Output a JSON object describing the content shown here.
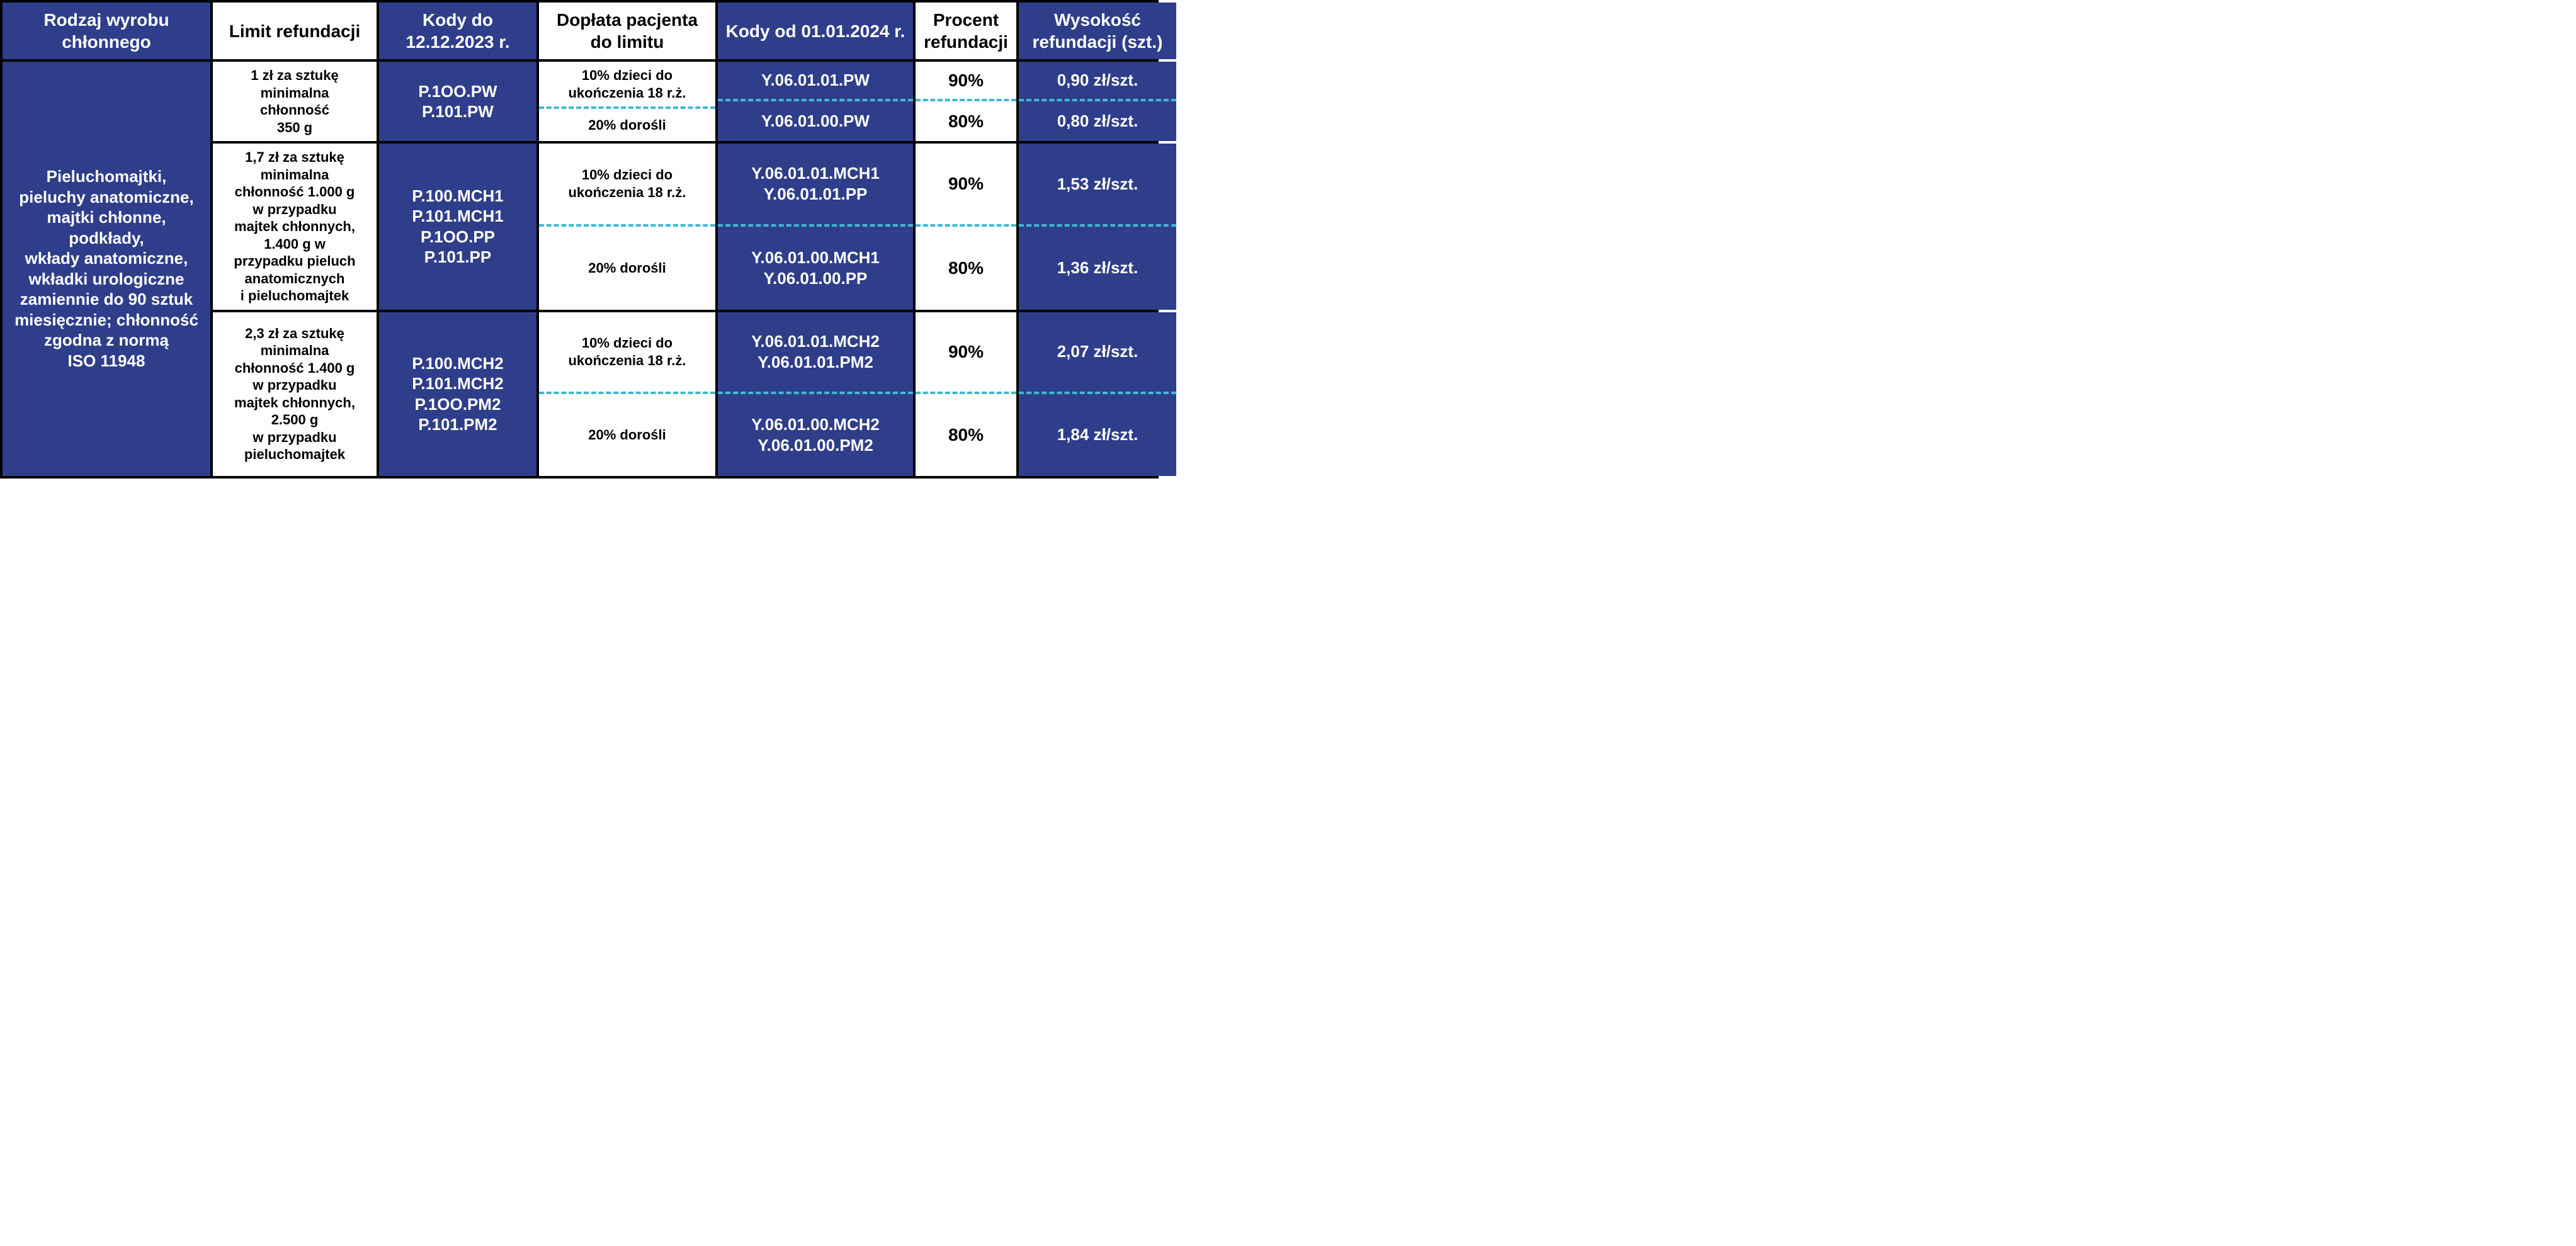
{
  "colors": {
    "blue": "#2f3e8a",
    "white": "#ffffff",
    "black": "#000000",
    "dash": "#3fb8d4"
  },
  "columns": [
    "Rodzaj wyrobu chłonnego",
    "Limit refundacji",
    "Kody do 12.12.2023 r.",
    "Dopłata pacjenta do limitu",
    "Kody od 01.01.2024 r.",
    "Procent refundacji",
    "Wysokość refundacji (szt.)"
  ],
  "rowLabel": "Pieluchomajtki,\npieluchy anatomiczne,\nmajtki chłonne,\npodkłady,\nwkłady anatomiczne,\nwkładki urologiczne\nzamiennie do 90 sztuk\nmiesięcznie; chłonność\nzgodna z normą\nISO 11948",
  "groups": [
    {
      "limit": "1 zł za sztukę\nminimalna\nchłonność\n350 g",
      "codesOld": "P.1OO.PW\nP.101.PW",
      "sub": [
        {
          "surcharge": "10% dzieci do\nukończenia 18 r.ż.",
          "codesNew": "Y.06.01.01.PW",
          "percent": "90%",
          "amount": "0,90 zł/szt."
        },
        {
          "surcharge": "20% dorośli",
          "codesNew": "Y.06.01.00.PW",
          "percent": "80%",
          "amount": "0,80 zł/szt."
        }
      ]
    },
    {
      "limit": "1,7 zł za sztukę\nminimalna\nchłonność 1.000 g\nw przypadku\nmajtek chłonnych,\n1.400 g w\nprzypadku pieluch\nanatomicznych\ni pieluchomajtek",
      "codesOld": "P.100.MCH1\nP.101.MCH1\nP.1OO.PP\nP.101.PP",
      "sub": [
        {
          "surcharge": "10% dzieci do\nukończenia 18 r.ż.",
          "codesNew": "Y.06.01.01.MCH1\nY.06.01.01.PP",
          "percent": "90%",
          "amount": "1,53 zł/szt."
        },
        {
          "surcharge": "20% dorośli",
          "codesNew": "Y.06.01.00.MCH1\nY.06.01.00.PP",
          "percent": "80%",
          "amount": "1,36 zł/szt."
        }
      ]
    },
    {
      "limit": "2,3 zł za sztukę\nminimalna\nchłonność 1.400 g\nw przypadku\nmajtek chłonnych,\n2.500 g\nw przypadku\npieluchomajtek",
      "codesOld": "P.100.MCH2\nP.101.MCH2\nP.1OO.PM2\nP.101.PM2",
      "sub": [
        {
          "surcharge": "10% dzieci do\nukończenia 18 r.ż.",
          "codesNew": "Y.06.01.01.MCH2\nY.06.01.01.PM2",
          "percent": "90%",
          "amount": "2,07 zł/szt."
        },
        {
          "surcharge": "20% dorośli",
          "codesNew": "Y.06.01.00.MCH2\nY.06.01.00.PM2",
          "percent": "80%",
          "amount": "1,84 zł/szt."
        }
      ]
    }
  ],
  "header_bg": [
    "blue",
    "white",
    "blue",
    "white",
    "blue",
    "white",
    "blue"
  ],
  "fontsizes": {
    "header": 28,
    "rowLabel": 26,
    "limit": 22,
    "codes": 26,
    "percent": 28,
    "amount": 26
  }
}
